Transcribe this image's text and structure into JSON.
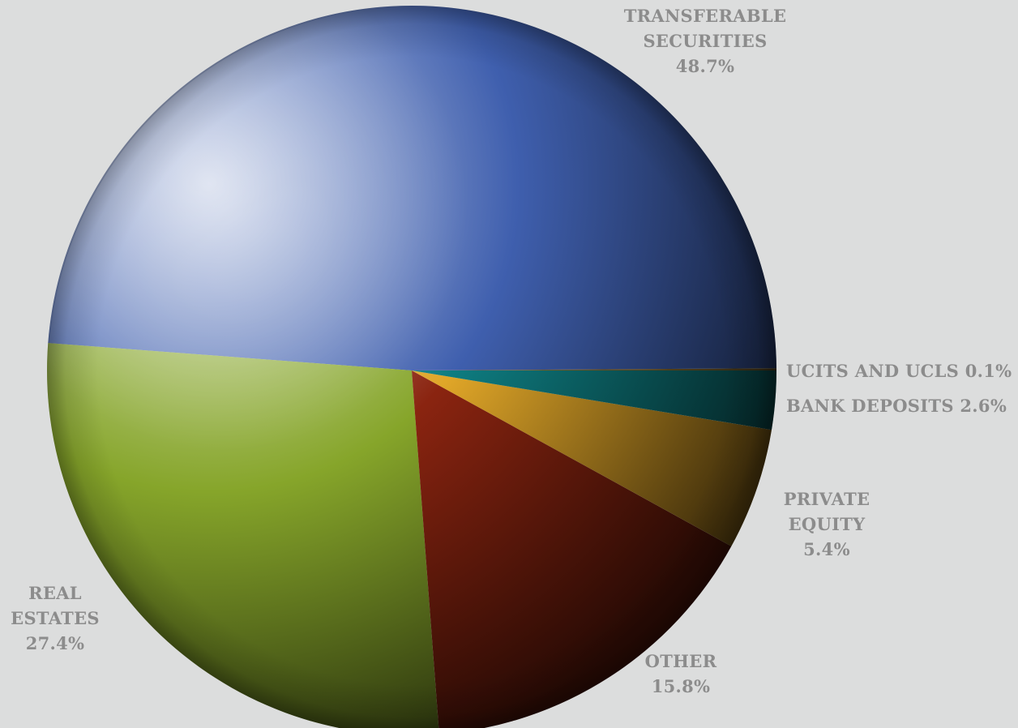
{
  "chart_data": {
    "type": "pie",
    "title": "",
    "slices": [
      {
        "name": "UCITS AND UCLS",
        "value": 0.1,
        "value_label": "0.1%",
        "color": "#8b6f2f"
      },
      {
        "name": "TRANSFERABLE SECURITIES",
        "value": 48.7,
        "value_label": "48.7%",
        "color": "#3f5fae"
      },
      {
        "name": "REAL ESTATES",
        "value": 27.4,
        "value_label": "27.4%",
        "color": "#86a52a"
      },
      {
        "name": "OTHER",
        "value": 15.8,
        "value_label": "15.8%",
        "color": "#8a2410"
      },
      {
        "name": "PRIVATE EQUITY",
        "value": 5.4,
        "value_label": "5.4%",
        "color": "#e0a628"
      },
      {
        "name": "BANK DEPOSITS",
        "value": 2.6,
        "value_label": "2.6%",
        "color": "#0e7c80"
      }
    ],
    "legend": "none",
    "labels": [
      {
        "lines": [
          "TRANSFERABLE",
          "SECURITIES",
          "48.7%"
        ]
      },
      {
        "lines": [
          "UCITS AND UCLS 0.1%"
        ]
      },
      {
        "lines": [
          "BANK DEPOSITS 2.6%"
        ]
      },
      {
        "lines": [
          "PRIVATE",
          "EQUITY",
          "5.4%"
        ]
      },
      {
        "lines": [
          "OTHER",
          "15.8%"
        ]
      },
      {
        "lines": [
          "REAL",
          "ESTATES",
          "27.4%"
        ]
      }
    ]
  },
  "colors": {
    "background": "#dcdddd",
    "label_text": "#8c8c8c"
  }
}
